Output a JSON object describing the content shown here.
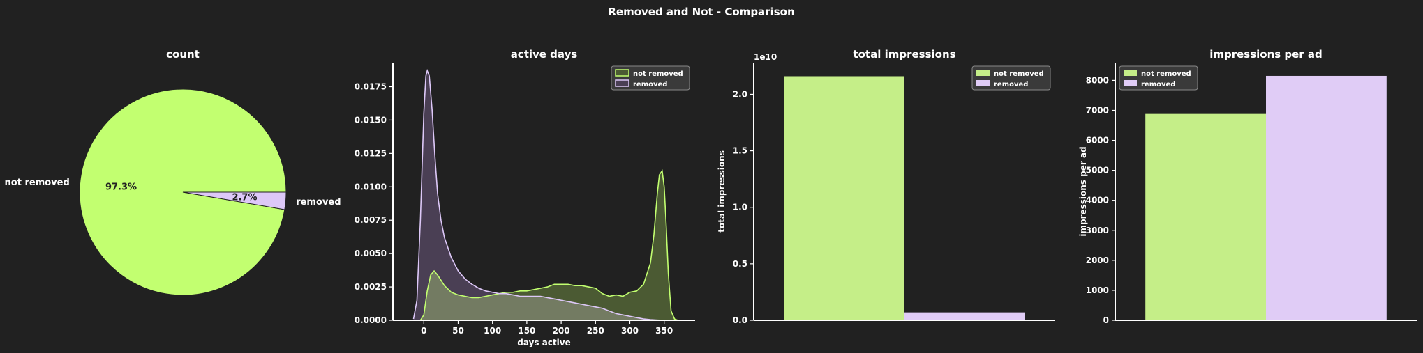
{
  "suptitle": "Removed and Not - Comparison",
  "colors": {
    "background": "#212121",
    "not_removed": "#c2ff70",
    "not_removed_bar": "#c5ee88",
    "removed": "#ddc8f8",
    "removed_bar": "#e0ccf6",
    "not_removed_kde_fill": "#4b5a33",
    "removed_kde_fill": "#4a3f54",
    "overlap_fill": "#737b62",
    "axis": "#ffffff",
    "legend_bg": "#3a3a3a"
  },
  "chart_data": [
    {
      "type": "pie",
      "title": "count",
      "labels": [
        "not removed",
        "removed"
      ],
      "values": [
        97.3,
        2.7
      ],
      "autopct": [
        "97.3%",
        "2.7%"
      ],
      "start_angle_deg": 0
    },
    {
      "type": "area",
      "subtype": "kde",
      "title": "active days",
      "xlabel": "days active",
      "ylabel": "",
      "xlim": [
        -45,
        395
      ],
      "ylim": [
        0,
        0.0193
      ],
      "xticks": [
        0,
        50,
        100,
        150,
        200,
        250,
        300,
        350
      ],
      "yticks": [
        "0.0000",
        "0.0025",
        "0.0050",
        "0.0075",
        "0.0100",
        "0.0125",
        "0.0150",
        "0.0175"
      ],
      "legend": {
        "loc": "upper right",
        "entries": [
          "not removed",
          "removed"
        ]
      },
      "series": [
        {
          "name": "not removed",
          "x": [
            -5,
            0,
            5,
            10,
            15,
            20,
            30,
            40,
            50,
            60,
            70,
            80,
            90,
            100,
            110,
            120,
            130,
            140,
            150,
            160,
            170,
            180,
            190,
            200,
            210,
            220,
            230,
            240,
            250,
            260,
            270,
            280,
            290,
            300,
            310,
            320,
            330,
            335,
            340,
            343,
            347,
            350,
            353,
            356,
            360,
            365,
            370
          ],
          "y": [
            0,
            0.0004,
            0.0022,
            0.0034,
            0.0037,
            0.0034,
            0.0026,
            0.0021,
            0.0019,
            0.0018,
            0.0017,
            0.0017,
            0.0018,
            0.0019,
            0.002,
            0.0021,
            0.0021,
            0.0022,
            0.0022,
            0.0023,
            0.0024,
            0.0025,
            0.0027,
            0.0027,
            0.0027,
            0.0026,
            0.0026,
            0.0025,
            0.0024,
            0.002,
            0.0018,
            0.0019,
            0.0018,
            0.0021,
            0.0022,
            0.0027,
            0.0043,
            0.0064,
            0.0095,
            0.0109,
            0.0112,
            0.01,
            0.007,
            0.0035,
            0.0007,
            0.0001,
            0
          ]
        },
        {
          "name": "removed",
          "x": [
            -15,
            -10,
            -5,
            0,
            3,
            5,
            8,
            12,
            16,
            20,
            25,
            30,
            40,
            50,
            60,
            70,
            80,
            90,
            100,
            110,
            120,
            130,
            140,
            150,
            160,
            170,
            180,
            190,
            200,
            210,
            220,
            230,
            240,
            250,
            260,
            270,
            280,
            290,
            300,
            310,
            320,
            330,
            340,
            350
          ],
          "y": [
            0.0001,
            0.0015,
            0.0075,
            0.0155,
            0.0183,
            0.0187,
            0.0183,
            0.0158,
            0.0124,
            0.0095,
            0.0075,
            0.0062,
            0.0047,
            0.0037,
            0.0031,
            0.0027,
            0.0024,
            0.0022,
            0.0021,
            0.002,
            0.002,
            0.0019,
            0.0018,
            0.0018,
            0.0018,
            0.0018,
            0.0017,
            0.0016,
            0.0015,
            0.0014,
            0.0013,
            0.0012,
            0.0011,
            0.001,
            0.0009,
            0.0007,
            0.0005,
            0.0004,
            0.0003,
            0.0002,
            0.0001,
            5e-05,
            2e-05,
            0
          ]
        }
      ]
    },
    {
      "type": "bar",
      "title": "total impressions",
      "ylabel": "total impressions",
      "offset_label": "1e10",
      "categories": [
        "not removed",
        "removed"
      ],
      "values": [
        2.16,
        0.07
      ],
      "ylim": [
        0,
        2.28
      ],
      "yticks": [
        "0.0",
        "0.5",
        "1.0",
        "1.5",
        "2.0"
      ],
      "legend": {
        "loc": "upper right",
        "entries": [
          "not removed",
          "removed"
        ]
      }
    },
    {
      "type": "bar",
      "title": "impressions per ad",
      "ylabel": "impressions per ad",
      "categories": [
        "not removed",
        "removed"
      ],
      "values": [
        6880,
        8150
      ],
      "ylim": [
        0,
        8590
      ],
      "yticks": [
        "0",
        "1000",
        "2000",
        "3000",
        "4000",
        "5000",
        "6000",
        "7000",
        "8000"
      ],
      "legend": {
        "loc": "upper left",
        "entries": [
          "not removed",
          "removed"
        ]
      }
    }
  ]
}
